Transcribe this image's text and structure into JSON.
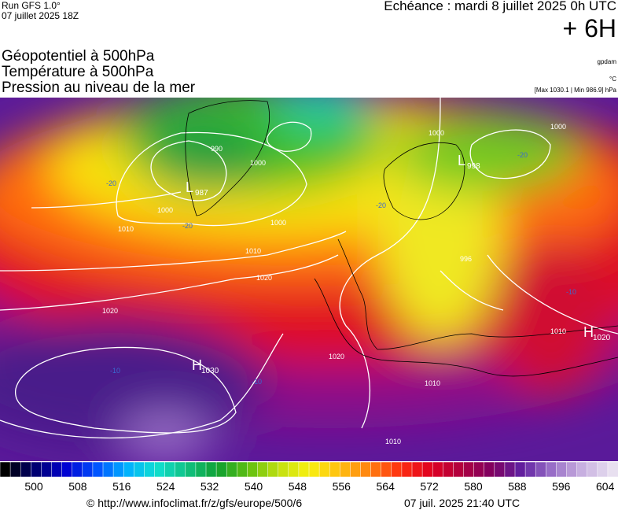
{
  "header": {
    "run": "Run GFS 1.0°",
    "run_date": "07 juillet 2025 18Z",
    "valid": "Echéance : mardi 8 juillet 2025 0h UTC",
    "lead": "+ 6H",
    "titles": [
      "Géopotentiel à 500hPa",
      "Température à 500hPa",
      "Pression au niveau de la mer"
    ],
    "unit_geo": "gpdam",
    "unit_temp": "°C",
    "range": "[Max 1030.1 | Min 986.9] hPa"
  },
  "map": {
    "centers": [
      {
        "symbol": "L",
        "value": "987"
      },
      {
        "symbol": "L",
        "value": "998"
      },
      {
        "symbol": "H",
        "value": "1030"
      },
      {
        "symbol": "H",
        "value": "1020"
      }
    ],
    "isobar_labels": [
      "990",
      "1000",
      "1000",
      "1000",
      "1000",
      "1010",
      "1010",
      "1020",
      "1020",
      "1020",
      "1010",
      "1010",
      "996",
      "1010",
      "1000"
    ],
    "temp_labels": [
      "-20",
      "-20",
      "-20",
      "-20",
      "-10",
      "-10",
      "-10"
    ]
  },
  "colorbar": {
    "ticks": [
      500,
      508,
      516,
      524,
      532,
      540,
      548,
      556,
      564,
      572,
      580,
      588,
      596,
      604
    ]
  },
  "footer": {
    "source": "© http://www.infoclimat.fr/z/gfs/europe/500/6",
    "generated": "07 juil. 2025 21:40 UTC"
  }
}
